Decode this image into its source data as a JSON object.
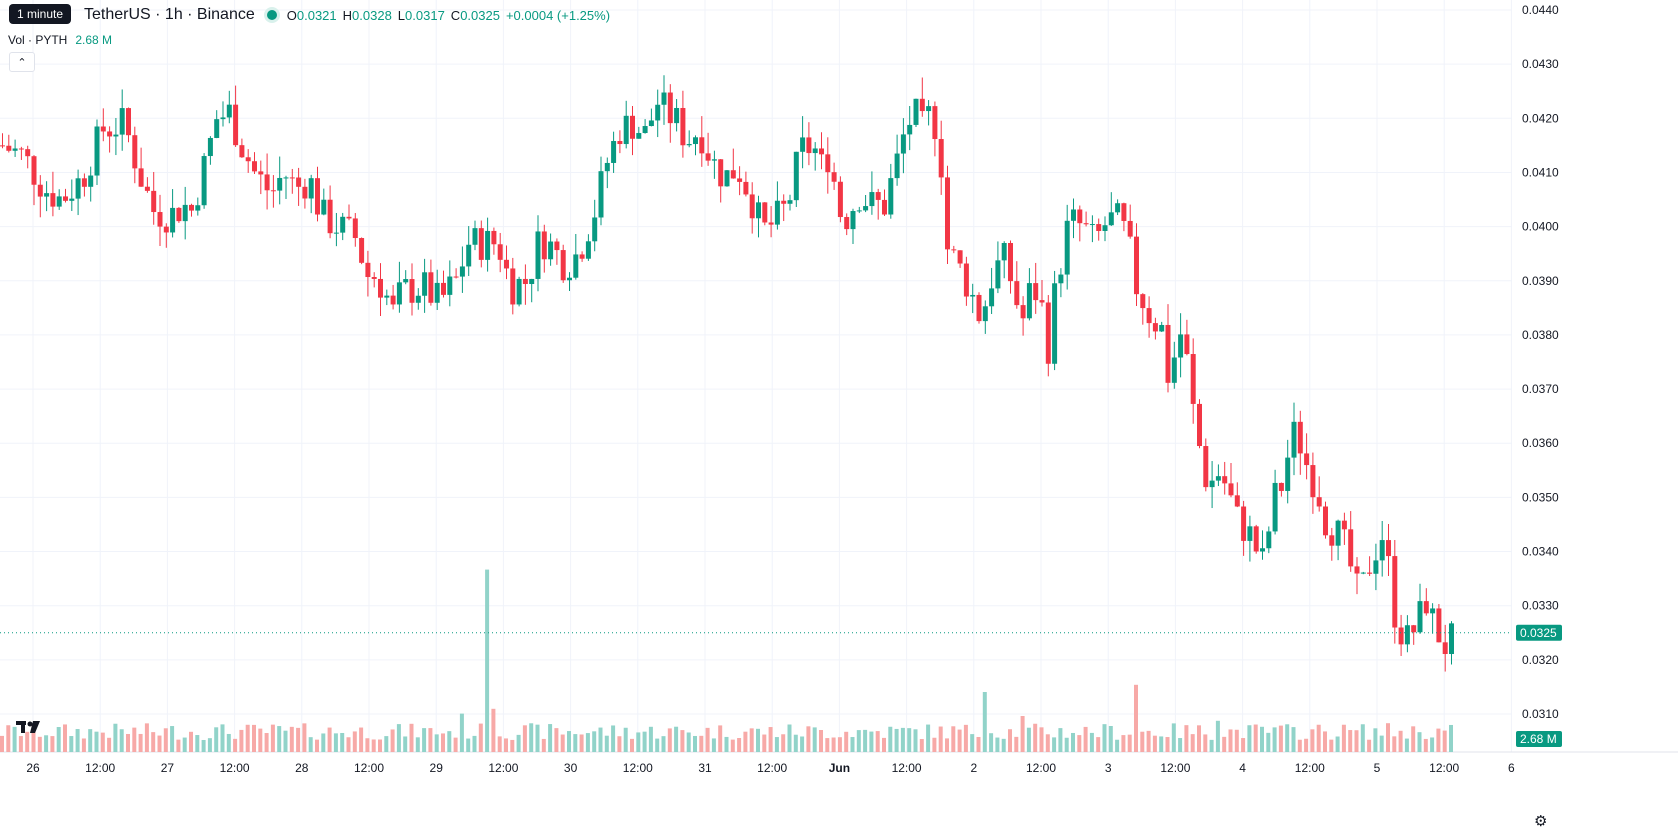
{
  "header": {
    "tooltip": "1 minute",
    "symbol": "TetherUS · 1h · Binance",
    "ohlc": {
      "o_label": "O",
      "o": "0.0321",
      "h_label": "H",
      "h": "0.0328",
      "l_label": "L",
      "l": "0.0317",
      "c_label": "C",
      "c": "0.0325",
      "change": "+0.0004 (+1.25%)"
    }
  },
  "volume_indicator": {
    "label": "Vol · PYTH",
    "value": "2.68 M"
  },
  "colors": {
    "up": "#089981",
    "down": "#f23645",
    "up_vol": "#91d3c9",
    "down_vol": "#f7a9a7",
    "grid": "#f0f3fa",
    "axis_text": "#131722"
  },
  "icons": {
    "collapse": "chevron-up-icon",
    "logo": "tradingview-logo-icon",
    "settings": "gear-icon"
  },
  "chart_data": {
    "type": "candlestick",
    "title": "TetherUS · 1h · Binance",
    "ylim": [
      0.0305,
      0.0442
    ],
    "y_ticks": [
      "0.0440",
      "0.0430",
      "0.0420",
      "0.0410",
      "0.0400",
      "0.0390",
      "0.0380",
      "0.0370",
      "0.0360",
      "0.0350",
      "0.0340",
      "0.0330",
      "0.0320",
      "0.0310"
    ],
    "x_ticks": [
      "26",
      "12:00",
      "27",
      "12:00",
      "28",
      "12:00",
      "29",
      "12:00",
      "30",
      "12:00",
      "31",
      "12:00",
      "Jun",
      "12:00",
      "2",
      "12:00",
      "3",
      "12:00",
      "4",
      "12:00",
      "5",
      "12:00",
      "6"
    ],
    "last_price_label": "0.0325",
    "last_volume_label": "2.68 M",
    "close_path": [
      [
        0,
        0.0415
      ],
      [
        10,
        0.0413
      ],
      [
        20,
        0.0407
      ],
      [
        28,
        0.0405
      ],
      [
        38,
        0.0409
      ],
      [
        48,
        0.0418
      ],
      [
        58,
        0.0419
      ],
      [
        66,
        0.0409
      ],
      [
        72,
        0.0403
      ],
      [
        80,
        0.0402
      ],
      [
        86,
        0.0404
      ],
      [
        90,
        0.0403
      ],
      [
        96,
        0.0411
      ],
      [
        102,
        0.042
      ],
      [
        108,
        0.0421
      ],
      [
        114,
        0.0415
      ],
      [
        120,
        0.041
      ],
      [
        128,
        0.0406
      ],
      [
        134,
        0.041
      ],
      [
        140,
        0.0407
      ],
      [
        146,
        0.0409
      ],
      [
        152,
        0.0402
      ],
      [
        160,
        0.04
      ],
      [
        168,
        0.0398
      ],
      [
        174,
        0.0391
      ],
      [
        178,
        0.0391
      ],
      [
        182,
        0.0388
      ],
      [
        186,
        0.0384
      ],
      [
        190,
        0.0388
      ],
      [
        200,
        0.0389
      ],
      [
        208,
        0.0386
      ],
      [
        216,
        0.039
      ],
      [
        222,
        0.0397
      ],
      [
        230,
        0.0397
      ],
      [
        236,
        0.0397
      ],
      [
        242,
        0.0389
      ],
      [
        250,
        0.039
      ],
      [
        256,
        0.0398
      ],
      [
        262,
        0.0396
      ],
      [
        268,
        0.0393
      ],
      [
        274,
        0.0395
      ],
      [
        282,
        0.0403
      ],
      [
        288,
        0.0412
      ],
      [
        294,
        0.0418
      ],
      [
        300,
        0.0419
      ],
      [
        306,
        0.0417
      ],
      [
        312,
        0.0423
      ],
      [
        316,
        0.0421
      ],
      [
        320,
        0.042
      ],
      [
        326,
        0.0416
      ],
      [
        332,
        0.0418
      ],
      [
        338,
        0.0412
      ],
      [
        344,
        0.0409
      ],
      [
        350,
        0.0411
      ],
      [
        356,
        0.0406
      ],
      [
        362,
        0.0399
      ],
      [
        368,
        0.0401
      ],
      [
        374,
        0.0404
      ],
      [
        380,
        0.0414
      ],
      [
        386,
        0.0415
      ],
      [
        390,
        0.0411
      ],
      [
        394,
        0.0414
      ],
      [
        398,
        0.0403
      ],
      [
        402,
        0.0402
      ],
      [
        408,
        0.0406
      ],
      [
        414,
        0.0404
      ],
      [
        420,
        0.0404
      ],
      [
        426,
        0.0412
      ],
      [
        430,
        0.0418
      ],
      [
        434,
        0.0421
      ],
      [
        438,
        0.0418
      ],
      [
        442,
        0.0421
      ],
      [
        446,
        0.0417
      ],
      [
        450,
        0.0396
      ],
      [
        456,
        0.0392
      ],
      [
        460,
        0.0389
      ],
      [
        466,
        0.0383
      ],
      [
        472,
        0.0392
      ],
      [
        478,
        0.0394
      ],
      [
        482,
        0.0387
      ],
      [
        486,
        0.0383
      ],
      [
        490,
        0.0389
      ],
      [
        494,
        0.0387
      ],
      [
        498,
        0.0378
      ],
      [
        502,
        0.039
      ],
      [
        508,
        0.0401
      ],
      [
        514,
        0.04
      ],
      [
        520,
        0.0397
      ],
      [
        526,
        0.0401
      ],
      [
        532,
        0.0401
      ],
      [
        536,
        0.0397
      ],
      [
        540,
        0.0389
      ],
      [
        546,
        0.0384
      ],
      [
        552,
        0.0381
      ],
      [
        556,
        0.037
      ],
      [
        560,
        0.0382
      ],
      [
        564,
        0.0375
      ],
      [
        568,
        0.0363
      ],
      [
        574,
        0.0352
      ],
      [
        580,
        0.0355
      ],
      [
        588,
        0.0346
      ],
      [
        594,
        0.0343
      ],
      [
        600,
        0.0338
      ],
      [
        606,
        0.035
      ],
      [
        610,
        0.0353
      ],
      [
        614,
        0.0362
      ],
      [
        618,
        0.036
      ],
      [
        622,
        0.0355
      ],
      [
        626,
        0.0352
      ],
      [
        630,
        0.0346
      ],
      [
        636,
        0.0343
      ],
      [
        640,
        0.034
      ],
      [
        646,
        0.0331
      ],
      [
        652,
        0.0339
      ],
      [
        658,
        0.0344
      ],
      [
        662,
        0.033
      ],
      [
        668,
        0.0323
      ],
      [
        674,
        0.0327
      ],
      [
        678,
        0.0331
      ],
      [
        682,
        0.0326
      ],
      [
        688,
        0.0322
      ],
      [
        692,
        0.0325
      ]
    ],
    "volume_spikes": [
      [
        232,
        3.8
      ],
      [
        234,
        1.2
      ],
      [
        236,
        0.9
      ],
      [
        220,
        0.8
      ],
      [
        468,
        1.25
      ],
      [
        488,
        0.75
      ],
      [
        542,
        1.4
      ],
      [
        580,
        0.65
      ],
      [
        610,
        0.55
      ],
      [
        660,
        0.6
      ]
    ]
  }
}
